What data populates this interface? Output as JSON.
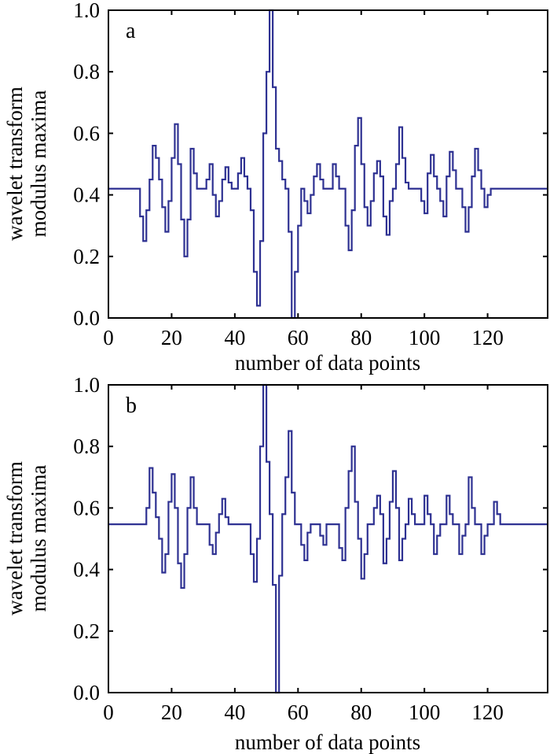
{
  "chart_data": [
    {
      "type": "line",
      "panel_label": "a",
      "xlabel": "number of data points",
      "ylabel": [
        "wavelet transform",
        "modulus maxima"
      ],
      "xlim": [
        0,
        139
      ],
      "ylim": [
        0.0,
        1.0
      ],
      "xticks": [
        "0",
        "20",
        "40",
        "60",
        "80",
        "100",
        "120"
      ],
      "yticks": [
        "0.0",
        "0.2",
        "0.4",
        "0.6",
        "0.8",
        "1.0"
      ],
      "grid": false,
      "line_color": "#2e3192",
      "step": true,
      "baseline": 0.42,
      "points": [
        [
          10,
          0.33
        ],
        [
          11,
          0.25
        ],
        [
          12,
          0.35
        ],
        [
          13,
          0.45
        ],
        [
          14,
          0.56
        ],
        [
          15,
          0.52
        ],
        [
          16,
          0.45
        ],
        [
          17,
          0.36
        ],
        [
          18,
          0.28
        ],
        [
          19,
          0.38
        ],
        [
          20,
          0.52
        ],
        [
          21,
          0.63
        ],
        [
          22,
          0.5
        ],
        [
          23,
          0.32
        ],
        [
          24,
          0.2
        ],
        [
          25,
          0.32
        ],
        [
          26,
          0.55
        ],
        [
          27,
          0.47
        ],
        [
          31,
          0.45
        ],
        [
          32,
          0.5
        ],
        [
          33,
          0.4
        ],
        [
          34,
          0.33
        ],
        [
          35,
          0.38
        ],
        [
          36,
          0.45
        ],
        [
          37,
          0.49
        ],
        [
          38,
          0.44
        ],
        [
          41,
          0.47
        ],
        [
          42,
          0.52
        ],
        [
          43,
          0.46
        ],
        [
          45,
          0.35
        ],
        [
          46,
          0.15
        ],
        [
          47,
          0.04
        ],
        [
          48,
          0.25
        ],
        [
          49,
          0.6
        ],
        [
          50,
          0.8
        ],
        [
          51,
          1.0
        ],
        [
          52,
          0.75
        ],
        [
          53,
          0.55
        ],
        [
          54,
          0.51
        ],
        [
          55,
          0.45
        ],
        [
          57,
          0.28
        ],
        [
          58,
          0.0
        ],
        [
          59,
          0.15
        ],
        [
          60,
          0.3
        ],
        [
          62,
          0.38
        ],
        [
          63,
          0.34
        ],
        [
          64,
          0.4
        ],
        [
          65,
          0.46
        ],
        [
          66,
          0.5
        ],
        [
          67,
          0.45
        ],
        [
          71,
          0.5
        ],
        [
          72,
          0.46
        ],
        [
          75,
          0.3
        ],
        [
          76,
          0.22
        ],
        [
          77,
          0.35
        ],
        [
          78,
          0.56
        ],
        [
          79,
          0.65
        ],
        [
          80,
          0.5
        ],
        [
          81,
          0.36
        ],
        [
          82,
          0.3
        ],
        [
          83,
          0.38
        ],
        [
          84,
          0.47
        ],
        [
          85,
          0.51
        ],
        [
          86,
          0.46
        ],
        [
          87,
          0.33
        ],
        [
          88,
          0.27
        ],
        [
          89,
          0.38
        ],
        [
          91,
          0.5
        ],
        [
          92,
          0.62
        ],
        [
          93,
          0.52
        ],
        [
          94,
          0.44
        ],
        [
          99,
          0.38
        ],
        [
          100,
          0.34
        ],
        [
          101,
          0.47
        ],
        [
          102,
          0.53
        ],
        [
          103,
          0.46
        ],
        [
          105,
          0.38
        ],
        [
          106,
          0.33
        ],
        [
          107,
          0.46
        ],
        [
          108,
          0.54
        ],
        [
          109,
          0.48
        ],
        [
          112,
          0.36
        ],
        [
          113,
          0.28
        ],
        [
          114,
          0.36
        ],
        [
          115,
          0.46
        ],
        [
          116,
          0.55
        ],
        [
          117,
          0.48
        ],
        [
          119,
          0.36
        ],
        [
          120,
          0.4
        ]
      ]
    },
    {
      "type": "line",
      "panel_label": "b",
      "xlabel": "number of data points",
      "ylabel": [
        "wavelet transform",
        "modulus maxima"
      ],
      "xlim": [
        0,
        139
      ],
      "ylim": [
        0.0,
        1.0
      ],
      "xticks": [
        "0",
        "20",
        "40",
        "60",
        "80",
        "100",
        "120"
      ],
      "yticks": [
        "0.0",
        "0.2",
        "0.4",
        "0.6",
        "0.8",
        "1.0"
      ],
      "grid": false,
      "line_color": "#2e3192",
      "step": true,
      "baseline": 0.547,
      "points": [
        [
          12,
          0.6
        ],
        [
          13,
          0.73
        ],
        [
          14,
          0.65
        ],
        [
          15,
          0.57
        ],
        [
          16,
          0.5
        ],
        [
          17,
          0.39
        ],
        [
          18,
          0.45
        ],
        [
          19,
          0.62
        ],
        [
          20,
          0.71
        ],
        [
          21,
          0.6
        ],
        [
          22,
          0.42
        ],
        [
          23,
          0.34
        ],
        [
          24,
          0.45
        ],
        [
          25,
          0.6
        ],
        [
          26,
          0.7
        ],
        [
          27,
          0.6
        ],
        [
          32,
          0.48
        ],
        [
          33,
          0.45
        ],
        [
          34,
          0.52
        ],
        [
          35,
          0.58
        ],
        [
          36,
          0.63
        ],
        [
          37,
          0.57
        ],
        [
          45,
          0.45
        ],
        [
          46,
          0.36
        ],
        [
          47,
          0.5
        ],
        [
          48,
          0.8
        ],
        [
          49,
          1.0
        ],
        [
          50,
          0.75
        ],
        [
          51,
          0.58
        ],
        [
          52,
          0.35
        ],
        [
          53,
          0.0
        ],
        [
          54,
          0.38
        ],
        [
          55,
          0.58
        ],
        [
          56,
          0.7
        ],
        [
          57,
          0.85
        ],
        [
          58,
          0.65
        ],
        [
          61,
          0.48
        ],
        [
          62,
          0.43
        ],
        [
          63,
          0.52
        ],
        [
          67,
          0.51
        ],
        [
          68,
          0.48
        ],
        [
          73,
          0.47
        ],
        [
          74,
          0.43
        ],
        [
          75,
          0.6
        ],
        [
          76,
          0.72
        ],
        [
          77,
          0.8
        ],
        [
          78,
          0.62
        ],
        [
          79,
          0.5
        ],
        [
          80,
          0.37
        ],
        [
          81,
          0.45
        ],
        [
          84,
          0.6
        ],
        [
          85,
          0.64
        ],
        [
          86,
          0.58
        ],
        [
          87,
          0.42
        ],
        [
          88,
          0.5
        ],
        [
          89,
          0.62
        ],
        [
          90,
          0.72
        ],
        [
          91,
          0.6
        ],
        [
          92,
          0.43
        ],
        [
          93,
          0.5
        ],
        [
          95,
          0.63
        ],
        [
          96,
          0.58
        ],
        [
          100,
          0.64
        ],
        [
          101,
          0.58
        ],
        [
          103,
          0.45
        ],
        [
          104,
          0.51
        ],
        [
          107,
          0.64
        ],
        [
          108,
          0.58
        ],
        [
          111,
          0.45
        ],
        [
          112,
          0.51
        ],
        [
          114,
          0.7
        ],
        [
          115,
          0.6
        ],
        [
          118,
          0.45
        ],
        [
          119,
          0.51
        ],
        [
          122,
          0.62
        ],
        [
          123,
          0.58
        ]
      ]
    }
  ]
}
